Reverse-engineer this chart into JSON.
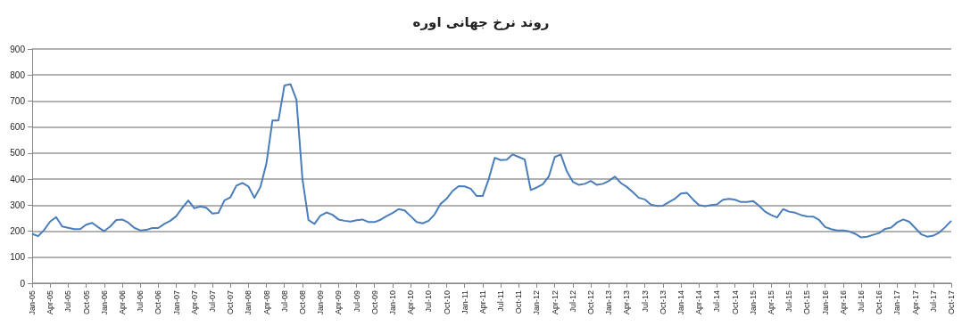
{
  "chart_data": {
    "type": "line",
    "title": "روند نرخ جهانی اوره",
    "categories": [
      "Jan-05",
      null,
      null,
      "Apr-05",
      null,
      null,
      "Jul-05",
      null,
      null,
      "Oct-05",
      null,
      null,
      "Jan-06",
      null,
      null,
      "Apr-06",
      null,
      null,
      "Jul-06",
      null,
      null,
      "Oct-06",
      null,
      null,
      "Jan-07",
      null,
      null,
      "Apr-07",
      null,
      null,
      "Jul-07",
      null,
      null,
      "Oct-07",
      null,
      null,
      "Jan-08",
      null,
      null,
      "Apr-08",
      null,
      null,
      "Jul-08",
      null,
      null,
      "Oct-08",
      null,
      null,
      "Jan-09",
      null,
      null,
      "Apr-09",
      null,
      null,
      "Jul-09",
      null,
      null,
      "Oct-09",
      null,
      null,
      "Jan-10",
      null,
      null,
      "Apr-10",
      null,
      null,
      "Jul-10",
      null,
      null,
      "Oct-10",
      null,
      null,
      "Jan-11",
      null,
      null,
      "Apr-11",
      null,
      null,
      "Jul-11",
      null,
      null,
      "Oct-11",
      null,
      null,
      "Jan-12",
      null,
      null,
      "Apr-12",
      null,
      null,
      "Jul-12",
      null,
      null,
      "Oct-12",
      null,
      null,
      "Jan-13",
      null,
      null,
      "Apr-13",
      null,
      null,
      "Jul-13",
      null,
      null,
      "Oct-13",
      null,
      null,
      "Jan-14",
      null,
      null,
      "Apr-14",
      null,
      null,
      "Jul-14",
      null,
      null,
      "Oct-14",
      null,
      null,
      "Jan-15",
      null,
      null,
      "Apr-15",
      null,
      null,
      "Jul-15",
      null,
      null,
      "Oct-15",
      null,
      null,
      "Jan-16",
      null,
      null,
      "Apr-16",
      null,
      null,
      "Jul-16",
      null,
      null,
      "Oct-16",
      null,
      null,
      "Jan-17",
      null,
      null,
      "Apr-17",
      null,
      null,
      "Jul-17",
      null,
      null,
      "Oct-17"
    ],
    "series": [
      {
        "color": "#4a7ebb",
        "values": [
          190,
          181,
          205,
          237,
          254,
          218,
          213,
          208,
          208,
          225,
          232,
          215,
          200,
          218,
          243,
          245,
          233,
          213,
          203,
          205,
          212,
          212,
          228,
          240,
          258,
          290,
          318,
          288,
          295,
          290,
          268,
          270,
          318,
          330,
          375,
          385,
          372,
          328,
          370,
          460,
          625,
          625,
          760,
          765,
          705,
          400,
          243,
          228,
          260,
          272,
          263,
          245,
          240,
          237,
          242,
          245,
          235,
          235,
          244,
          258,
          270,
          285,
          280,
          258,
          235,
          230,
          240,
          265,
          305,
          325,
          355,
          373,
          372,
          363,
          335,
          335,
          400,
          482,
          473,
          475,
          495,
          485,
          475,
          358,
          368,
          380,
          410,
          485,
          495,
          430,
          390,
          378,
          382,
          393,
          378,
          382,
          393,
          410,
          385,
          370,
          350,
          328,
          322,
          302,
          297,
          298,
          312,
          325,
          345,
          347,
          322,
          300,
          296,
          300,
          303,
          321,
          324,
          321,
          312,
          312,
          316,
          298,
          275,
          262,
          253,
          285,
          275,
          271,
          262,
          257,
          256,
          243,
          216,
          208,
          203,
          203,
          199,
          190,
          176,
          179,
          186,
          193,
          209,
          214,
          234,
          245,
          236,
          212,
          188,
          179,
          183,
          195,
          216,
          240
        ]
      }
    ],
    "ylim": [
      0,
      900
    ],
    "yticks": [
      0,
      100,
      200,
      300,
      400,
      500,
      600,
      700,
      800,
      900
    ],
    "grid": "y",
    "marker": "none",
    "line_style": "solid"
  }
}
